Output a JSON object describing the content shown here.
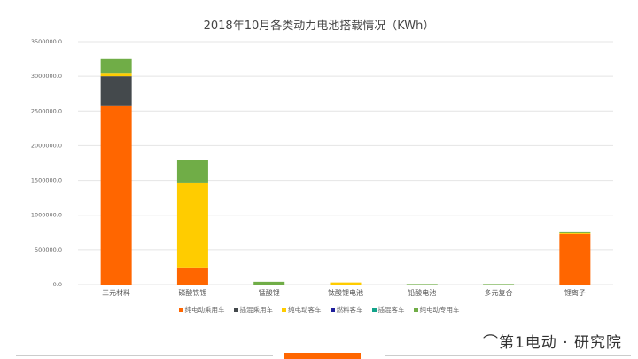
{
  "chart_data": {
    "type": "bar",
    "stacked": true,
    "title": "2018年10月各类动力电池搭载情况（KWh）",
    "categories": [
      "三元材料",
      "磷酸铁锂",
      "锰酸锂",
      "钛酸锂电池",
      "铅酸电池",
      "多元复合",
      "锂离子"
    ],
    "series": [
      {
        "name": "纯电动乘用车",
        "color": "#ff6600",
        "values": [
          2570000,
          245000,
          0,
          0,
          0,
          0,
          730000
        ]
      },
      {
        "name": "插混乘用车",
        "color": "#44494c",
        "values": [
          430000,
          0,
          0,
          0,
          0,
          0,
          0
        ]
      },
      {
        "name": "纯电动客车",
        "color": "#ffcc00",
        "values": [
          50000,
          1225000,
          0,
          30000,
          0,
          0,
          15000
        ]
      },
      {
        "name": "燃料客车",
        "color": "#1f1f9c",
        "values": [
          0,
          0,
          0,
          0,
          0,
          0,
          0
        ]
      },
      {
        "name": "插混客车",
        "color": "#13a38a",
        "values": [
          0,
          0,
          0,
          0,
          0,
          0,
          0
        ]
      },
      {
        "name": "纯电动专用车",
        "color": "#70ad47",
        "values": [
          210000,
          330000,
          40000,
          0,
          8000,
          8000,
          10000
        ]
      }
    ],
    "ylim": [
      0,
      3500000
    ],
    "yticks": [
      "0.0",
      "500000.0",
      "1000000.0",
      "1500000.0",
      "2000000.0",
      "2500000.0",
      "3000000.0",
      "3500000.0"
    ],
    "grid": true,
    "legend": "bottom"
  },
  "branding": {
    "logo_text": "第1电动 · 研究院"
  }
}
